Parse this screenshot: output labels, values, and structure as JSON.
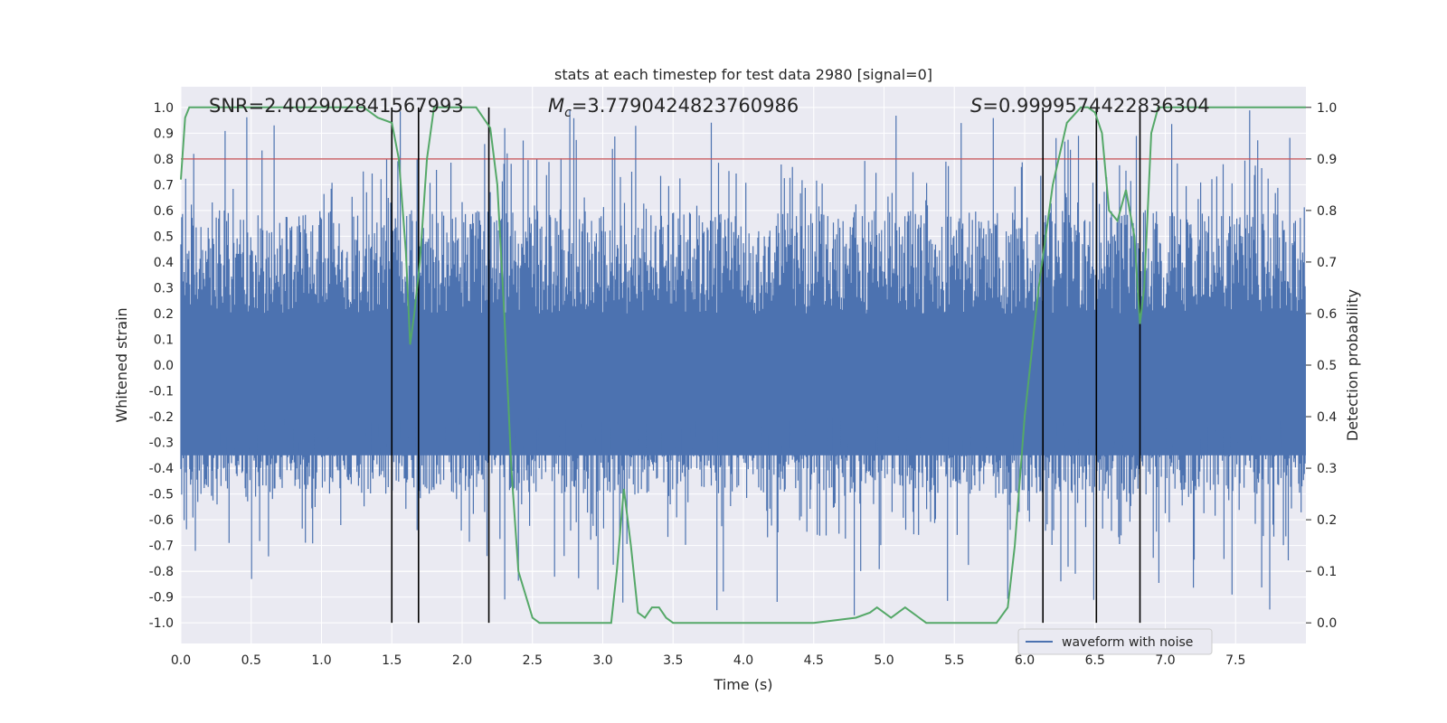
{
  "chart_data": {
    "type": "line",
    "title": "stats at each timestep for test data 2980 [signal=0]",
    "xlabel": "Time (s)",
    "ylabel": "Whitened strain",
    "ylabel_right": "Detection probability",
    "xlim": [
      0.0,
      8.0
    ],
    "ylim": [
      -1.08,
      1.08
    ],
    "ylim_right": [
      -0.04,
      1.04
    ],
    "xticks": [
      "0.0",
      "0.5",
      "1.0",
      "1.5",
      "2.0",
      "2.5",
      "3.0",
      "3.5",
      "4.0",
      "4.5",
      "5.0",
      "5.5",
      "6.0",
      "6.5",
      "7.0",
      "7.5"
    ],
    "yticks": [
      "-1.0",
      "-0.9",
      "-0.8",
      "-0.7",
      "-0.6",
      "-0.5",
      "-0.4",
      "-0.3",
      "-0.2",
      "-0.1",
      "0.0",
      "0.1",
      "0.2",
      "0.3",
      "0.4",
      "0.5",
      "0.6",
      "0.7",
      "0.8",
      "0.9",
      "1.0"
    ],
    "yticks_right": [
      "0.0",
      "0.1",
      "0.2",
      "0.3",
      "0.4",
      "0.5",
      "0.6",
      "0.7",
      "0.8",
      "0.9",
      "1.0"
    ],
    "grid": true,
    "legend": {
      "position": "bottom-right",
      "entries": [
        "waveform with noise"
      ]
    },
    "annotations": {
      "snr": "SNR=2.402902841567993",
      "mc_symbol": "M",
      "mc_sub": "c",
      "mc_value": "=3.7790424823760986",
      "s_symbol": "S",
      "s_value": "=0.9999574422836304"
    },
    "threshold_right": 0.9,
    "vlines_x": [
      1.5,
      1.69,
      2.19,
      6.13,
      6.51,
      6.82
    ],
    "waveform": {
      "name": "waveform with noise",
      "color": "#4c72b0",
      "description_envelope": "dense noise roughly between -0.5 and 0.7 with spikes to about +/-1.0"
    },
    "probability": {
      "name": "detection probability",
      "color": "#55a868",
      "x": [
        0.0,
        0.03,
        0.06,
        0.1,
        0.2,
        0.3,
        0.5,
        0.8,
        1.0,
        1.2,
        1.3,
        1.4,
        1.5,
        1.55,
        1.6,
        1.63,
        1.66,
        1.7,
        1.75,
        1.8,
        1.9,
        2.0,
        2.1,
        2.15,
        2.2,
        2.25,
        2.3,
        2.35,
        2.4,
        2.5,
        2.55,
        2.6,
        2.7,
        2.8,
        2.9,
        3.0,
        3.06,
        3.1,
        3.15,
        3.2,
        3.25,
        3.3,
        3.35,
        3.4,
        3.45,
        3.5,
        3.55,
        3.7,
        3.9,
        4.0,
        4.2,
        4.5,
        4.8,
        4.9,
        4.95,
        5.0,
        5.05,
        5.1,
        5.15,
        5.2,
        5.25,
        5.3,
        5.4,
        5.6,
        5.8,
        5.88,
        5.93,
        6.0,
        6.1,
        6.2,
        6.3,
        6.4,
        6.45,
        6.5,
        6.55,
        6.6,
        6.66,
        6.72,
        6.78,
        6.82,
        6.85,
        6.9,
        6.95,
        7.0,
        7.2,
        7.5,
        7.7,
        8.0
      ],
      "y": [
        0.86,
        0.98,
        1.0,
        1.0,
        1.0,
        1.0,
        1.0,
        1.0,
        1.0,
        1.0,
        1.0,
        0.98,
        0.97,
        0.9,
        0.72,
        0.54,
        0.6,
        0.7,
        0.9,
        1.0,
        1.0,
        1.0,
        1.0,
        0.98,
        0.96,
        0.85,
        0.6,
        0.3,
        0.1,
        0.01,
        0.0,
        0.0,
        0.0,
        0.0,
        0.0,
        0.0,
        0.0,
        0.1,
        0.26,
        0.15,
        0.02,
        0.01,
        0.03,
        0.03,
        0.01,
        0.0,
        0.0,
        0.0,
        0.0,
        0.0,
        0.0,
        0.0,
        0.01,
        0.02,
        0.03,
        0.02,
        0.01,
        0.02,
        0.03,
        0.02,
        0.01,
        0.0,
        0.0,
        0.0,
        0.0,
        0.03,
        0.15,
        0.4,
        0.65,
        0.85,
        0.97,
        1.0,
        1.0,
        0.99,
        0.95,
        0.8,
        0.78,
        0.84,
        0.75,
        0.58,
        0.65,
        0.95,
        1.0,
        1.0,
        1.0,
        1.0,
        1.0,
        1.0
      ]
    }
  }
}
